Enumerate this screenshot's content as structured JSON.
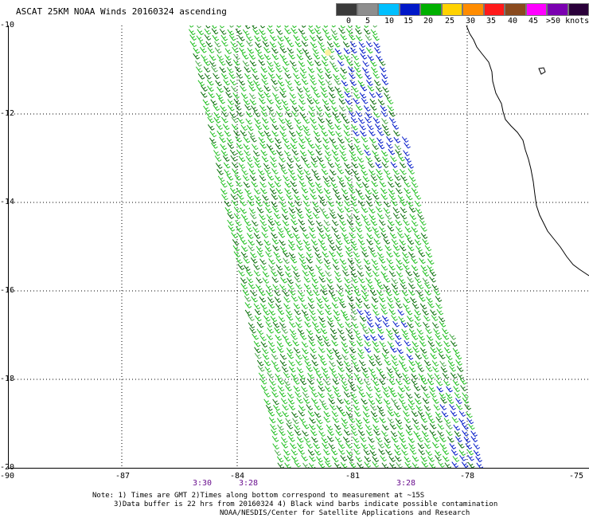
{
  "title": "ASCAT 25KM NOAA Winds 20160324 ascending",
  "legend": {
    "labels": [
      "0",
      "5",
      "10",
      "15",
      "20",
      "25",
      "30",
      "35",
      "40",
      "45",
      ">50 knots"
    ],
    "colors": [
      "#3a3a3a",
      "#8e8e8e",
      "#00c0ff",
      "#0018c8",
      "#00b000",
      "#ffd200",
      "#ff8c00",
      "#ff1a1a",
      "#8a4a1e",
      "#ff00ff",
      "#7a00b0",
      "#2a003a"
    ]
  },
  "axes": {
    "lat_labels": [
      "-10",
      "-12",
      "-14",
      "-16",
      "-18",
      "-20"
    ],
    "lon_labels": [
      "-90",
      "-87",
      "-84",
      "-81",
      "-78",
      "-75"
    ]
  },
  "times": [
    "3:30",
    "3:28",
    "3:28"
  ],
  "notes": [
    "Note: 1) Times are GMT 2)Times along bottom correspond to measurement at ~15S",
    "3)Data buffer is 22 hrs from 20160324 4) Black wind barbs indicate possible contamination",
    "NOAA/NESDIS/Center for Satellite Applications and Research"
  ]
}
